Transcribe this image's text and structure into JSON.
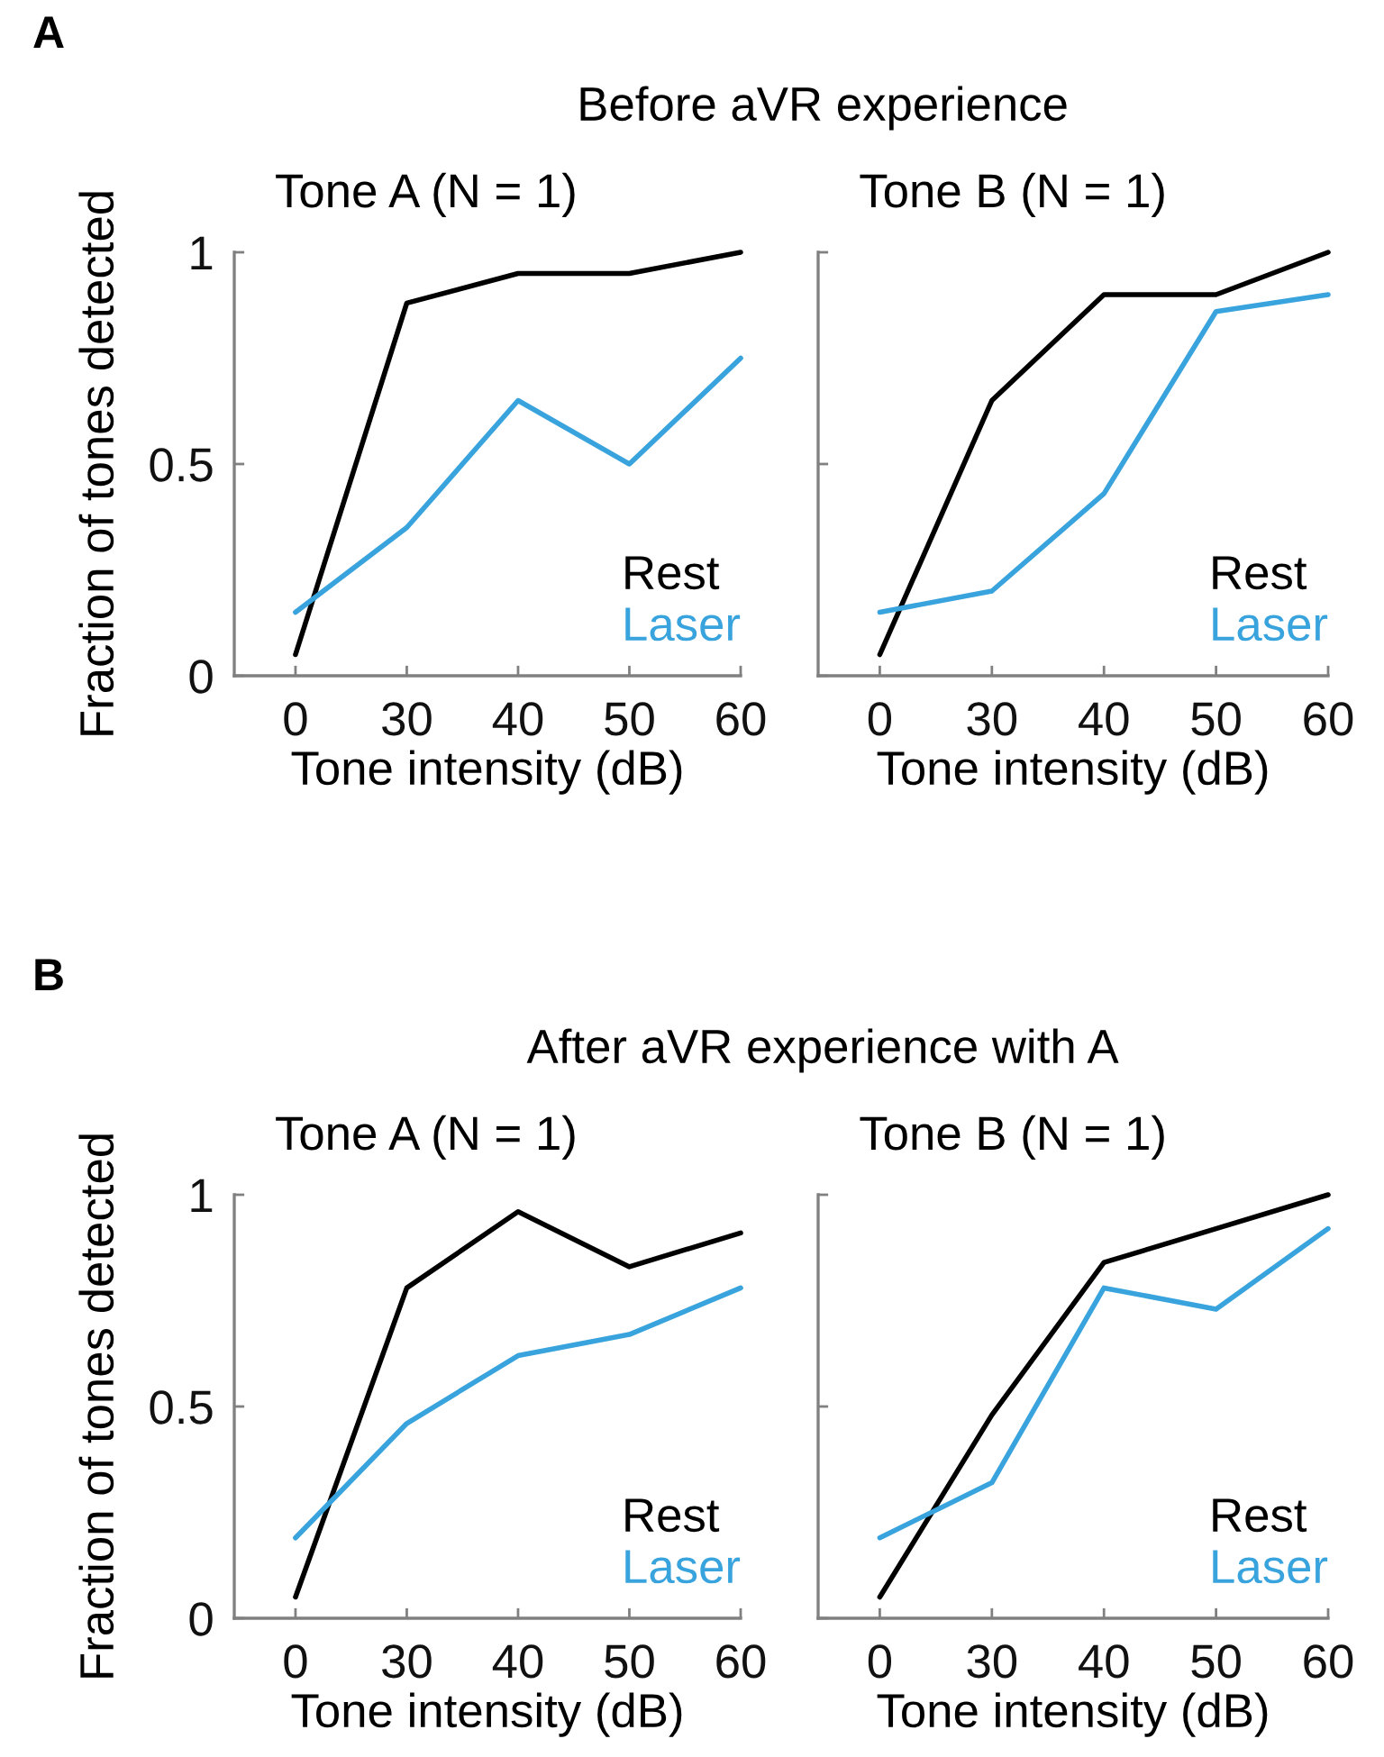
{
  "chart_data": [
    {
      "type": "line",
      "title": "Tone A (N = 1)",
      "annotations": [
        "A",
        "Before aVR experience"
      ],
      "xlabel": "Tone intensity (dB)",
      "ylabel": "Fraction of tones detected",
      "categories": [
        "0",
        "30",
        "40",
        "50",
        "60"
      ],
      "series": [
        {
          "name": "Rest",
          "color": "#000000",
          "values": [
            0.05,
            0.88,
            0.95,
            0.95,
            1.0
          ]
        },
        {
          "name": "Laser",
          "color": "#38a3dc",
          "values": [
            0.15,
            0.35,
            0.65,
            0.5,
            0.75
          ]
        }
      ],
      "ylim": [
        0,
        1
      ],
      "yticks": [
        0,
        0.5,
        1
      ],
      "legend": "bottom right"
    },
    {
      "type": "line",
      "title": "Tone B (N = 1)",
      "xlabel": "Tone intensity (dB)",
      "categories": [
        "0",
        "30",
        "40",
        "50",
        "60"
      ],
      "series": [
        {
          "name": "Rest",
          "color": "#000000",
          "values": [
            0.05,
            0.65,
            0.9,
            0.9,
            1.0
          ]
        },
        {
          "name": "Laser",
          "color": "#38a3dc",
          "values": [
            0.15,
            0.2,
            0.43,
            0.86,
            0.9
          ]
        }
      ],
      "ylim": [
        0,
        1
      ],
      "yticks": [
        0,
        0.5,
        1
      ],
      "tick_labels": "x",
      "legend": "bottom right"
    },
    {
      "type": "line",
      "title": "Tone A (N = 1)",
      "annotations": [
        "B",
        "After aVR experience with A"
      ],
      "xlabel": "Tone intensity (dB)",
      "ylabel": "Fraction of tones detected",
      "categories": [
        "0",
        "30",
        "40",
        "50",
        "60"
      ],
      "series": [
        {
          "name": "Rest",
          "color": "#000000",
          "values": [
            0.05,
            0.78,
            0.96,
            0.83,
            0.91
          ]
        },
        {
          "name": "Laser",
          "color": "#38a3dc",
          "values": [
            0.19,
            0.46,
            0.62,
            0.67,
            0.78
          ]
        }
      ],
      "ylim": [
        0,
        1
      ],
      "yticks": [
        0,
        0.5,
        1
      ],
      "legend": "bottom right"
    },
    {
      "type": "line",
      "title": "Tone B (N = 1)",
      "xlabel": "Tone intensity (dB)",
      "categories": [
        "0",
        "30",
        "40",
        "50",
        "60"
      ],
      "series": [
        {
          "name": "Rest",
          "color": "#000000",
          "values": [
            0.05,
            0.48,
            0.84,
            0.92,
            1.0
          ]
        },
        {
          "name": "Laser",
          "color": "#38a3dc",
          "values": [
            0.19,
            0.32,
            0.78,
            0.73,
            0.92
          ]
        }
      ],
      "ylim": [
        0,
        1
      ],
      "yticks": [
        0,
        0.5,
        1
      ],
      "tick_labels": "x",
      "legend": "bottom right"
    }
  ]
}
